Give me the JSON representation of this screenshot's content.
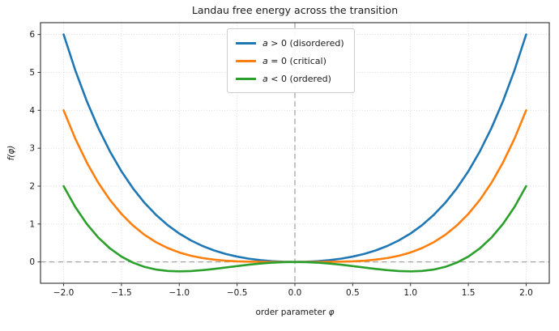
{
  "figure": {
    "title": "Landau free energy across the transition",
    "xlabel_prefix": "order parameter ",
    "xlabel_symbol": "φ",
    "ylabel": "f(φ)"
  },
  "axes_style": {
    "background": "#ffffff",
    "grid_color": "#d6d6d6",
    "spine_color": "#1a1a1a",
    "tick_color": "#333333",
    "text_color": "#1a1a1a",
    "refline_color": "#a3a3a3",
    "legend_border": "#cccccc"
  },
  "chart_data": {
    "type": "line",
    "title": "Landau free energy across the transition",
    "xlabel": "order parameter φ",
    "ylabel": "f(φ)",
    "xlim": [
      -2.2,
      2.2
    ],
    "ylim": [
      -0.5625,
      6.3125
    ],
    "xticks": [
      -2.0,
      -1.5,
      -1.0,
      -0.5,
      0.0,
      0.5,
      1.0,
      1.5,
      2.0
    ],
    "xtick_labels": [
      "−2.0",
      "−1.5",
      "−1.0",
      "−0.5",
      "0.0",
      "0.5",
      "1.0",
      "1.5",
      "2.0"
    ],
    "yticks": [
      0,
      1,
      2,
      3,
      4,
      5,
      6
    ],
    "ytick_labels": [
      "0",
      "1",
      "2",
      "3",
      "4",
      "5",
      "6"
    ],
    "grid": "dotted",
    "legend_position": "upper center",
    "reference_lines": {
      "horizontal_y": 0,
      "vertical_x": 0,
      "style": "dashed",
      "color": "#a3a3a3"
    },
    "x": [
      -2.0,
      -1.9,
      -1.8,
      -1.7,
      -1.6,
      -1.5,
      -1.4,
      -1.3,
      -1.2,
      -1.1,
      -1.0,
      -0.9,
      -0.8,
      -0.7,
      -0.6,
      -0.5,
      -0.4,
      -0.3,
      -0.2,
      -0.1,
      0.0,
      0.1,
      0.2,
      0.3,
      0.4,
      0.5,
      0.6,
      0.7,
      0.8,
      0.9,
      1.0,
      1.1,
      1.2,
      1.3,
      1.4,
      1.5,
      1.6,
      1.7,
      1.8,
      1.9,
      2.0
    ],
    "series": [
      {
        "name": "a > 0 (disordered)",
        "legend_var": "a",
        "legend_rest": " > 0 (disordered)",
        "color": "#1f77b4",
        "values": [
          6.0,
          5.063,
          4.2444,
          3.533,
          2.9184,
          2.3906,
          1.9404,
          1.559,
          1.2384,
          0.971,
          0.75,
          0.569,
          0.4224,
          0.305,
          0.2124,
          0.1406,
          0.0864,
          0.047,
          0.0204,
          0.005,
          0.0,
          0.005,
          0.0204,
          0.047,
          0.0864,
          0.1406,
          0.2124,
          0.305,
          0.4224,
          0.569,
          0.75,
          0.971,
          1.2384,
          1.559,
          1.9404,
          2.3906,
          2.9184,
          3.533,
          4.2444,
          5.063,
          6.0
        ]
      },
      {
        "name": "a = 0 (critical)",
        "legend_var": "a",
        "legend_rest": " = 0 (critical)",
        "color": "#ff7f0e",
        "values": [
          4.0,
          3.258,
          2.6244,
          2.088,
          1.6384,
          1.2656,
          0.9604,
          0.714,
          0.5184,
          0.366,
          0.25,
          0.164,
          0.1024,
          0.06,
          0.0324,
          0.0156,
          0.0064,
          0.002,
          0.0004,
          0.0001,
          0.0,
          0.0001,
          0.0004,
          0.002,
          0.0064,
          0.0156,
          0.0324,
          0.06,
          0.1024,
          0.164,
          0.25,
          0.366,
          0.5184,
          0.714,
          0.9604,
          1.2656,
          1.6384,
          2.088,
          2.6244,
          3.258,
          4.0
        ]
      },
      {
        "name": "a < 0 (ordered)",
        "legend_var": "a",
        "legend_rest": " < 0 (ordered)",
        "color": "#2ca02c",
        "values": [
          2.0,
          1.453,
          1.0044,
          0.643,
          0.3584,
          0.1406,
          -0.0196,
          -0.131,
          -0.2016,
          -0.239,
          -0.25,
          -0.241,
          -0.2176,
          -0.185,
          -0.1476,
          -0.1094,
          -0.0736,
          -0.043,
          -0.0196,
          -0.005,
          0.0,
          -0.005,
          -0.0196,
          -0.043,
          -0.0736,
          -0.1094,
          -0.1476,
          -0.185,
          -0.2176,
          -0.241,
          -0.25,
          -0.239,
          -0.2016,
          -0.131,
          -0.0196,
          0.1406,
          0.3584,
          0.643,
          1.0044,
          1.453,
          2.0
        ]
      }
    ]
  }
}
